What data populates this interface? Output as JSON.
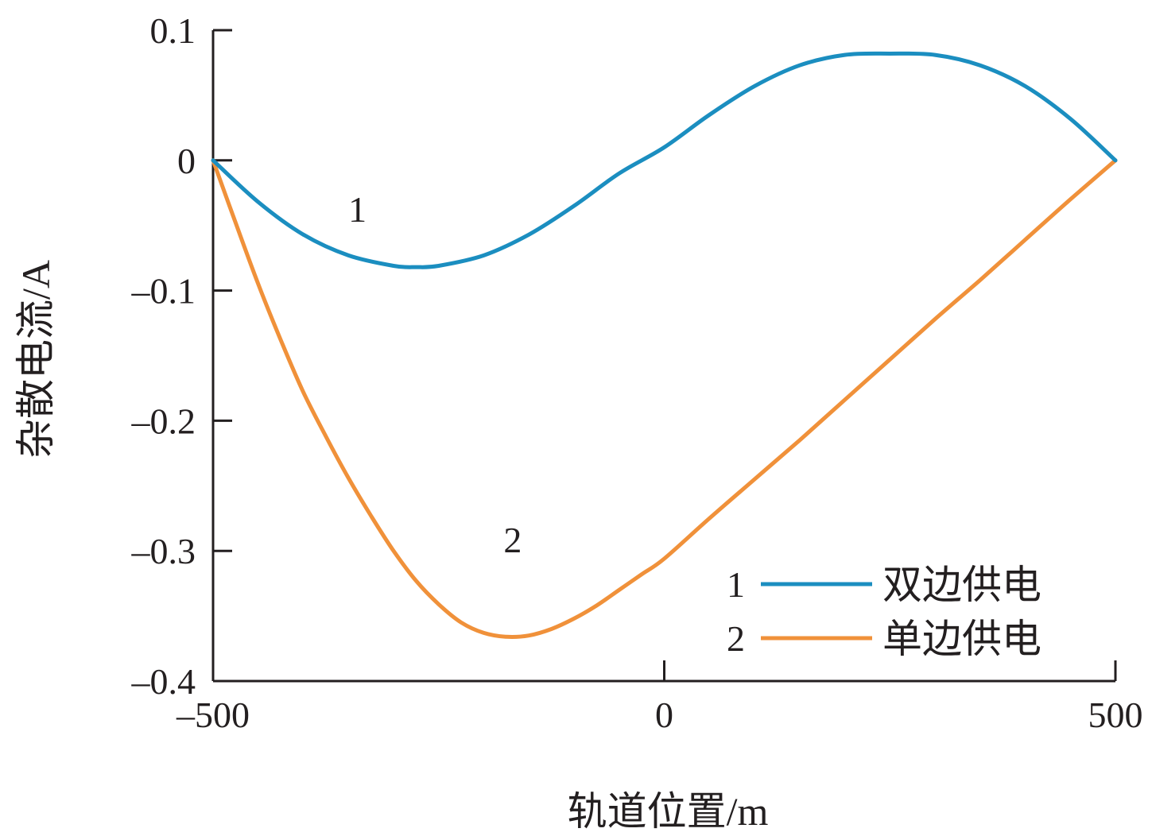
{
  "chart_data": {
    "type": "line",
    "xlabel": "轨道位置/m",
    "ylabel": "杂散电流/A",
    "xlim": [
      -500,
      500
    ],
    "ylim": [
      -0.4,
      0.1
    ],
    "x_ticks": [
      -500,
      0,
      500
    ],
    "x_tick_labels": [
      "–500",
      "0",
      "500"
    ],
    "y_ticks": [
      0.1,
      0,
      -0.1,
      -0.2,
      -0.3,
      -0.4
    ],
    "y_tick_labels": [
      "0.1",
      "0",
      "–0.1",
      "–0.2",
      "–0.3",
      "–0.4"
    ],
    "grid": false,
    "legend_position": "bottom-right",
    "series": [
      {
        "id": "1",
        "name": "双边供电",
        "label": "1",
        "color": "#1b8ec0",
        "x": [
          -500,
          -450,
          -400,
          -350,
          -300,
          -275,
          -250,
          -200,
          -150,
          -100,
          -50,
          0,
          50,
          100,
          150,
          200,
          250,
          300,
          350,
          400,
          450,
          500
        ],
        "y": [
          0,
          -0.032,
          -0.057,
          -0.073,
          -0.081,
          -0.082,
          -0.081,
          -0.073,
          -0.057,
          -0.035,
          -0.01,
          0.01,
          0.035,
          0.057,
          0.073,
          0.081,
          0.082,
          0.081,
          0.073,
          0.057,
          0.032,
          0
        ]
      },
      {
        "id": "2",
        "name": "单边供电",
        "label": "2",
        "color": "#f0913a",
        "x": [
          -500,
          -475,
          -450,
          -425,
          -400,
          -375,
          -350,
          -325,
          -300,
          -275,
          -250,
          -225,
          -200,
          -175,
          -150,
          -125,
          -100,
          -75,
          -50,
          -25,
          0,
          50,
          100,
          150,
          200,
          250,
          300,
          350,
          400,
          450,
          500
        ],
        "y": [
          0,
          -0.048,
          -0.095,
          -0.138,
          -0.178,
          -0.212,
          -0.244,
          -0.273,
          -0.3,
          -0.323,
          -0.341,
          -0.355,
          -0.363,
          -0.366,
          -0.365,
          -0.36,
          -0.352,
          -0.342,
          -0.33,
          -0.318,
          -0.306,
          -0.275,
          -0.245,
          -0.215,
          -0.184,
          -0.153,
          -0.122,
          -0.092,
          -0.061,
          -0.03,
          0
        ]
      }
    ],
    "annotations": [
      {
        "text": "1",
        "x": -340,
        "y": -0.047
      },
      {
        "text": "2",
        "x": -168,
        "y": -0.301
      }
    ]
  }
}
